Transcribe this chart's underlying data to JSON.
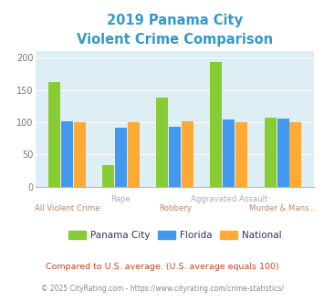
{
  "title_line1": "2019 Panama City",
  "title_line2": "Violent Crime Comparison",
  "title_color": "#3399cc",
  "categories_top": [
    "",
    "Rape",
    "",
    "Aggravated Assault",
    ""
  ],
  "categories_bottom": [
    "All Violent Crime",
    "",
    "Robbery",
    "",
    "Murder & Mans..."
  ],
  "panama_city": [
    162,
    33,
    138,
    193,
    107
  ],
  "florida": [
    101,
    92,
    93,
    104,
    105
  ],
  "national": [
    100,
    100,
    101,
    100,
    100
  ],
  "color_panama": "#88cc33",
  "color_florida": "#4499ee",
  "color_national": "#ffaa33",
  "ylim": [
    0,
    210
  ],
  "yticks": [
    0,
    50,
    100,
    150,
    200
  ],
  "bg_color": "#ddeef5",
  "legend_labels": [
    "Panama City",
    "Florida",
    "National"
  ],
  "footnote1": "Compared to U.S. average. (U.S. average equals 100)",
  "footnote2": "© 2025 CityRating.com - https://www.cityrating.com/crime-statistics/",
  "footnote1_color": "#cc4422",
  "footnote2_color": "#888888",
  "label_color_top": "#aaaacc",
  "label_color_bottom": "#bb8866"
}
